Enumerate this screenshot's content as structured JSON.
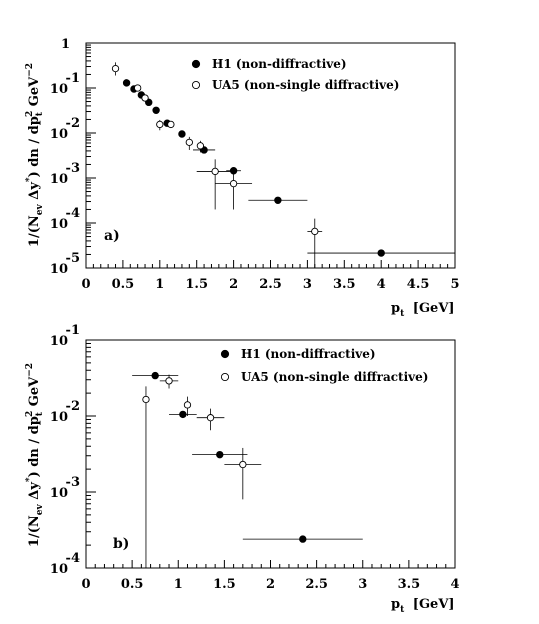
{
  "chart_data": [
    {
      "type": "scatter",
      "panel_label": "a)",
      "xlabel_main": "p",
      "xlabel_sub": "t",
      "xlabel_unit": "[GeV]",
      "ylabel_parts": [
        "1/(N",
        "ev",
        " Δy",
        "*",
        ") dn / dp",
        "t",
        "2",
        " GeV",
        "−2"
      ],
      "xlim": [
        0,
        5
      ],
      "ylim": [
        1e-05,
        1
      ],
      "y_scale": "log",
      "x_ticks": [
        "0",
        "0.5",
        "1",
        "1.5",
        "2",
        "2.5",
        "3",
        "3.5",
        "4",
        "4.5",
        "5"
      ],
      "y_ticks": [
        {
          "mant": "1",
          "exp": ""
        },
        {
          "mant": "10",
          "exp": "-1"
        },
        {
          "mant": "10",
          "exp": "-2"
        },
        {
          "mant": "10",
          "exp": "-3"
        },
        {
          "mant": "10",
          "exp": "-4"
        },
        {
          "mant": "10",
          "exp": "-5"
        }
      ],
      "legend_position": "top-right",
      "series": [
        {
          "name": "H1 (non-diffractive)",
          "marker": "filled-circle",
          "points": [
            {
              "x": 0.55,
              "y": 0.13
            },
            {
              "x": 0.65,
              "y": 0.095
            },
            {
              "x": 0.75,
              "y": 0.07
            },
            {
              "x": 0.85,
              "y": 0.048
            },
            {
              "x": 0.95,
              "y": 0.032
            },
            {
              "x": 1.1,
              "y": 0.0165
            },
            {
              "x": 1.3,
              "y": 0.0095
            },
            {
              "x": 1.6,
              "y": 0.0042,
              "xerr": 0.15
            },
            {
              "x": 2.0,
              "y": 0.00145,
              "xerr": 0.1
            },
            {
              "x": 2.6,
              "y": 0.00032,
              "xerr": 0.4
            },
            {
              "x": 4.0,
              "y": 2.15e-05,
              "xerr": 1.0
            }
          ]
        },
        {
          "name": "UA5 (non-single diffractive)",
          "marker": "open-circle",
          "points": [
            {
              "x": 0.4,
              "y": 0.27,
              "yerr_lo": 0.08,
              "yerr_hi": 0.1
            },
            {
              "x": 0.7,
              "y": 0.1
            },
            {
              "x": 0.8,
              "y": 0.06
            },
            {
              "x": 1.0,
              "y": 0.0155,
              "yerr_lo": 0.004,
              "yerr_hi": 0.004
            },
            {
              "x": 1.15,
              "y": 0.0155
            },
            {
              "x": 1.4,
              "y": 0.0062,
              "yerr_lo": 0.002,
              "yerr_hi": 0.002
            },
            {
              "x": 1.55,
              "y": 0.0052,
              "yerr_lo": 0.0015,
              "yerr_hi": 0.0015
            },
            {
              "x": 1.75,
              "y": 0.0014,
              "xerr": 0.25,
              "yerr_lo": 0.0012,
              "yerr_hi": 0.0012
            },
            {
              "x": 2.0,
              "y": 0.00075,
              "xerr": 0.25,
              "yerr_lo": 0.00055,
              "yerr_hi": 0.00055
            },
            {
              "x": 3.1,
              "y": 6.5e-05,
              "xerr": 0.1,
              "yerr_lo": 5.5e-05,
              "yerr_hi": 6e-05
            }
          ]
        }
      ]
    },
    {
      "type": "scatter",
      "panel_label": "b)",
      "xlabel_main": "p",
      "xlabel_sub": "t",
      "xlabel_unit": "[GeV]",
      "ylabel_parts": [
        "1/(N",
        "ev",
        " Δy",
        "*",
        ") dn / dp",
        "t",
        "2",
        " GeV",
        "−2"
      ],
      "xlim": [
        0,
        4
      ],
      "ylim": [
        0.0001,
        0.1
      ],
      "y_scale": "log",
      "x_ticks": [
        "0",
        "0.5",
        "1",
        "1.5",
        "2",
        "2.5",
        "3",
        "3.5",
        "4"
      ],
      "y_ticks": [
        {
          "mant": "10",
          "exp": "-1"
        },
        {
          "mant": "10",
          "exp": "-2"
        },
        {
          "mant": "10",
          "exp": "-3"
        },
        {
          "mant": "10",
          "exp": "-4"
        }
      ],
      "legend_position": "top-right",
      "series": [
        {
          "name": "H1 (non-diffractive)",
          "marker": "filled-circle",
          "points": [
            {
              "x": 0.75,
              "y": 0.034,
              "xerr": 0.25
            },
            {
              "x": 1.05,
              "y": 0.0105,
              "xerr": 0.15
            },
            {
              "x": 1.45,
              "y": 0.0031,
              "xerr": 0.3
            },
            {
              "x": 2.35,
              "y": 0.00024,
              "xerr": 0.65
            }
          ]
        },
        {
          "name": "UA5 (non-single diffractive)",
          "marker": "open-circle",
          "points": [
            {
              "x": 0.65,
              "y": 0.0165,
              "yerr_lo": 0.0164,
              "yerr_hi": 0.008
            },
            {
              "x": 0.9,
              "y": 0.029,
              "xerr": 0.1,
              "yerr_lo": 0.006,
              "yerr_hi": 0.006
            },
            {
              "x": 1.1,
              "y": 0.014,
              "yerr_lo": 0.004,
              "yerr_hi": 0.004
            },
            {
              "x": 1.35,
              "y": 0.0095,
              "xerr": 0.15,
              "yerr_lo": 0.003,
              "yerr_hi": 0.003
            },
            {
              "x": 1.7,
              "y": 0.0023,
              "xerr": 0.2,
              "yerr_lo": 0.0015,
              "yerr_hi": 0.0015
            }
          ]
        }
      ]
    }
  ]
}
